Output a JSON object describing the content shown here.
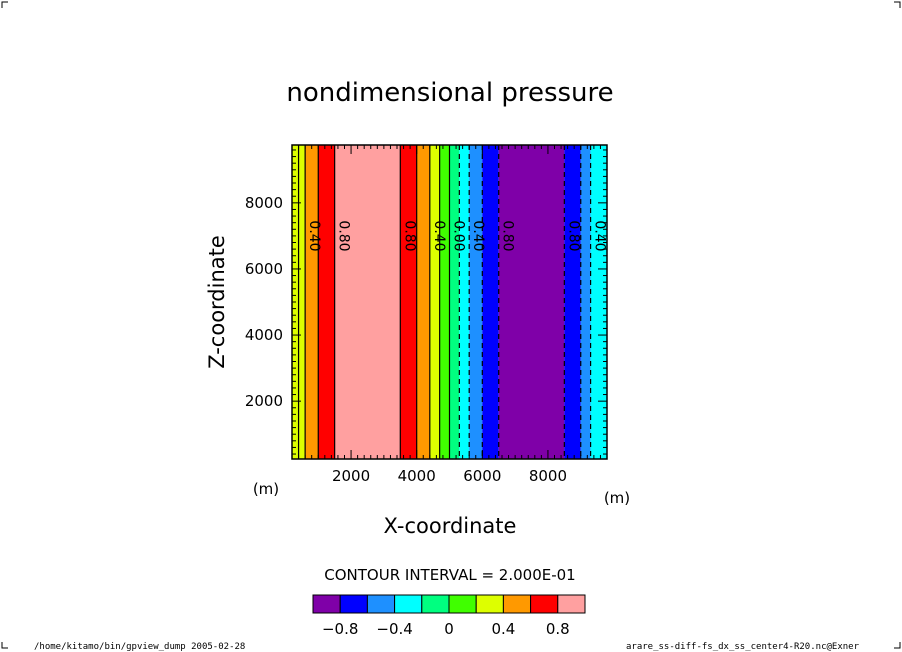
{
  "chart_data": {
    "type": "heatmap",
    "title": "nondimensional pressure",
    "xlabel": "X-coordinate",
    "ylabel": "Z-coordinate",
    "x_unit": "(m)",
    "y_unit": "(m)",
    "xlim": [
      200,
      9800
    ],
    "ylim": [
      250,
      9750
    ],
    "x_ticks": [
      2000,
      4000,
      6000,
      8000
    ],
    "x_tick_labels": [
      "2000",
      "4000",
      "6000",
      "8000"
    ],
    "y_ticks": [
      2000,
      4000,
      6000,
      8000
    ],
    "y_tick_labels": [
      "2000",
      "4000",
      "6000",
      "8000"
    ],
    "contour_interval_text": "CONTOUR INTERVAL = 2.000E-01",
    "colorbar": {
      "colors": [
        "#7f00a8",
        "#0000ff",
        "#1e90ff",
        "#00ffff",
        "#00ff80",
        "#40ff00",
        "#ddff00",
        "#ff9900",
        "#ff0000",
        "#ffa0a0"
      ],
      "tick_labels": [
        "−0.8",
        "−0.4",
        "0",
        "0.4",
        "0.8"
      ],
      "tick_values": [
        -0.8,
        -0.4,
        0,
        0.4,
        0.8
      ],
      "range": [
        -1.0,
        1.0
      ]
    },
    "bands": [
      {
        "x0": 200,
        "x1": 600,
        "color": "#ddff00"
      },
      {
        "x0": 600,
        "x1": 1000,
        "color": "#ff9900"
      },
      {
        "x0": 1000,
        "x1": 1500,
        "color": "#ff0000"
      },
      {
        "x0": 1500,
        "x1": 3500,
        "color": "#ffa0a0"
      },
      {
        "x0": 3500,
        "x1": 4000,
        "color": "#ff0000"
      },
      {
        "x0": 4000,
        "x1": 4400,
        "color": "#ff9900"
      },
      {
        "x0": 4400,
        "x1": 4700,
        "color": "#ddff00"
      },
      {
        "x0": 4700,
        "x1": 5000,
        "color": "#40ff00"
      },
      {
        "x0": 5000,
        "x1": 5300,
        "color": "#00ff80"
      },
      {
        "x0": 5300,
        "x1": 5600,
        "color": "#00ffff"
      },
      {
        "x0": 5600,
        "x1": 6000,
        "color": "#1e90ff"
      },
      {
        "x0": 6000,
        "x1": 6500,
        "color": "#0000ff"
      },
      {
        "x0": 6500,
        "x1": 8500,
        "color": "#7f00a8"
      },
      {
        "x0": 8500,
        "x1": 9000,
        "color": "#0000ff"
      },
      {
        "x0": 9000,
        "x1": 9300,
        "color": "#1e90ff"
      },
      {
        "x0": 9300,
        "x1": 9800,
        "color": "#00ffff"
      }
    ],
    "contours": [
      {
        "x": 400,
        "dash": false,
        "label": null
      },
      {
        "x": 600,
        "dash": false,
        "label": "0.40"
      },
      {
        "x": 1000,
        "dash": false,
        "label": null
      },
      {
        "x": 1500,
        "dash": false,
        "label": "0.80"
      },
      {
        "x": 3500,
        "dash": false,
        "label": "0.80"
      },
      {
        "x": 4000,
        "dash": false,
        "label": null
      },
      {
        "x": 4400,
        "dash": false,
        "label": "0.40"
      },
      {
        "x": 4700,
        "dash": false,
        "label": null
      },
      {
        "x": 5000,
        "dash": false,
        "label": "0.00"
      },
      {
        "x": 5300,
        "dash": true,
        "label": null
      },
      {
        "x": 5600,
        "dash": true,
        "label": "0.40"
      },
      {
        "x": 6000,
        "dash": true,
        "label": null
      },
      {
        "x": 6500,
        "dash": true,
        "label": "0.80"
      },
      {
        "x": 8500,
        "dash": true,
        "label": "0.80"
      },
      {
        "x": 9000,
        "dash": true,
        "label": null
      },
      {
        "x": 9300,
        "dash": true,
        "label": "0.40"
      }
    ]
  },
  "footer": {
    "left": "/home/kitamo/bin/gpview_dump  2005-02-28",
    "right": "arare_ss-diff-fs_dx_ss_center4-R20.nc@Exner"
  }
}
